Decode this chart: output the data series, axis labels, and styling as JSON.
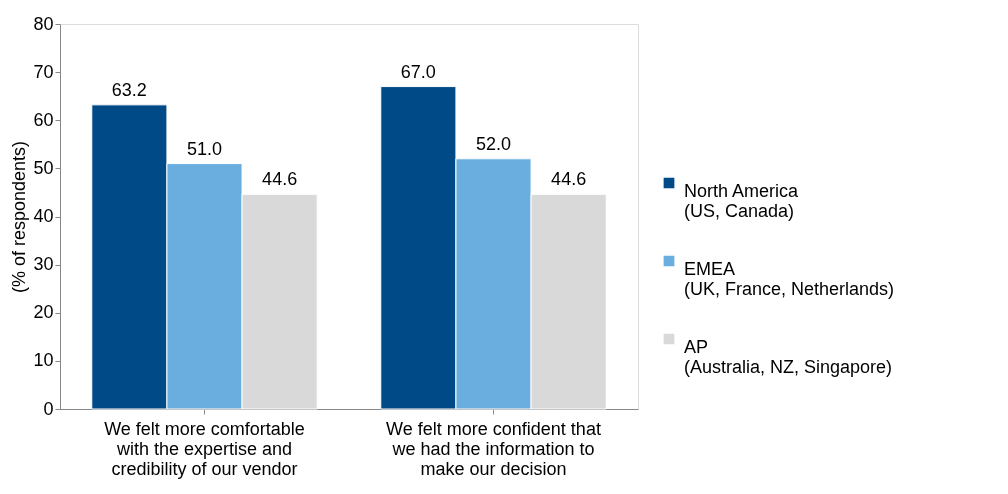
{
  "chart_data": {
    "type": "bar",
    "ylabel": "(% of respondents)",
    "categories": [
      "We felt more comfortable\nwith the expertise  and\ncredibility of our vendor",
      "We felt more confident that\nwe had the information to\nmake our decision"
    ],
    "series": [
      {
        "name": "North America\n(US, Canada)",
        "color": "#004a87",
        "values": [
          63.2,
          67.0
        ],
        "value_labels": [
          "63.2",
          "67.0"
        ]
      },
      {
        "name": "EMEA\n(UK, France, Netherlands)",
        "color": "#6aaee0",
        "values": [
          51.0,
          52.0
        ],
        "value_labels": [
          "51.0",
          "52.0"
        ]
      },
      {
        "name": "AP\n(Australia, NZ, Singapore)",
        "color": "#d9d9d9",
        "values": [
          44.6,
          44.6
        ],
        "value_labels": [
          "44.6",
          "44.6"
        ]
      }
    ],
    "ylim": [
      0,
      80
    ],
    "yticks": [
      0,
      10,
      20,
      30,
      40,
      50,
      60,
      70,
      80
    ],
    "legend": "right",
    "grid": false
  }
}
